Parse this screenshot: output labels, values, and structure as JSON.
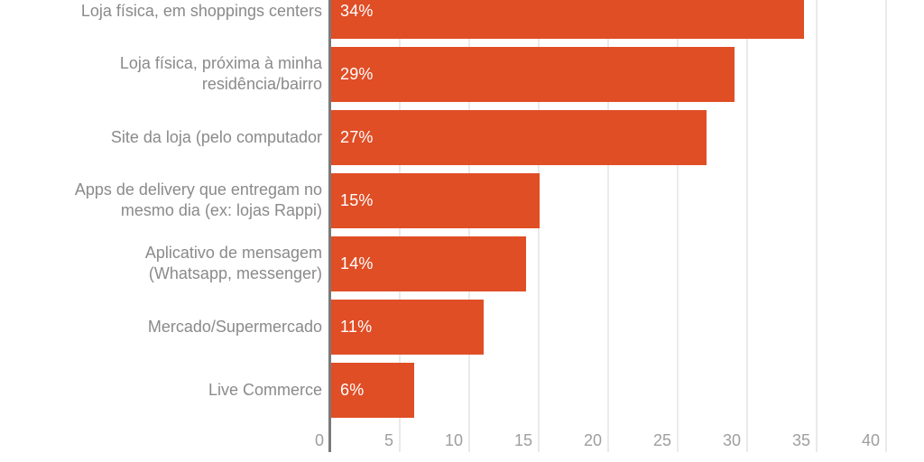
{
  "chart_data": {
    "type": "bar",
    "orientation": "horizontal",
    "title": "",
    "xlabel": "",
    "ylabel": "",
    "categories": [
      "Loja física, em shoppings centers",
      "Loja física, próxima à minha\nresidência/bairro",
      "Site da loja (pelo computador",
      "Apps de delivery que entregam no\nmesmo dia (ex: lojas Rappi)",
      "Aplicativo de mensagem\n(Whatsapp, messenger)",
      "Mercado/Supermercado",
      "Live Commerce"
    ],
    "values": [
      34,
      29,
      27,
      15,
      14,
      11,
      6
    ],
    "value_labels": [
      "34%",
      "29%",
      "27%",
      "15%",
      "14%",
      "11%",
      "6%"
    ],
    "xlim": [
      0,
      40
    ],
    "x_ticks": [
      0,
      5,
      10,
      15,
      20,
      25,
      30,
      35,
      40
    ],
    "grid": true,
    "legend": "none",
    "colors": {
      "bar": "#e04e26",
      "axis_line": "#7a7a7a",
      "gridline": "#eaeaea",
      "category_label": "#8a8a8a",
      "tick_label": "#9e9e9e",
      "value_label": "#ffffff",
      "background": "#ffffff"
    }
  }
}
